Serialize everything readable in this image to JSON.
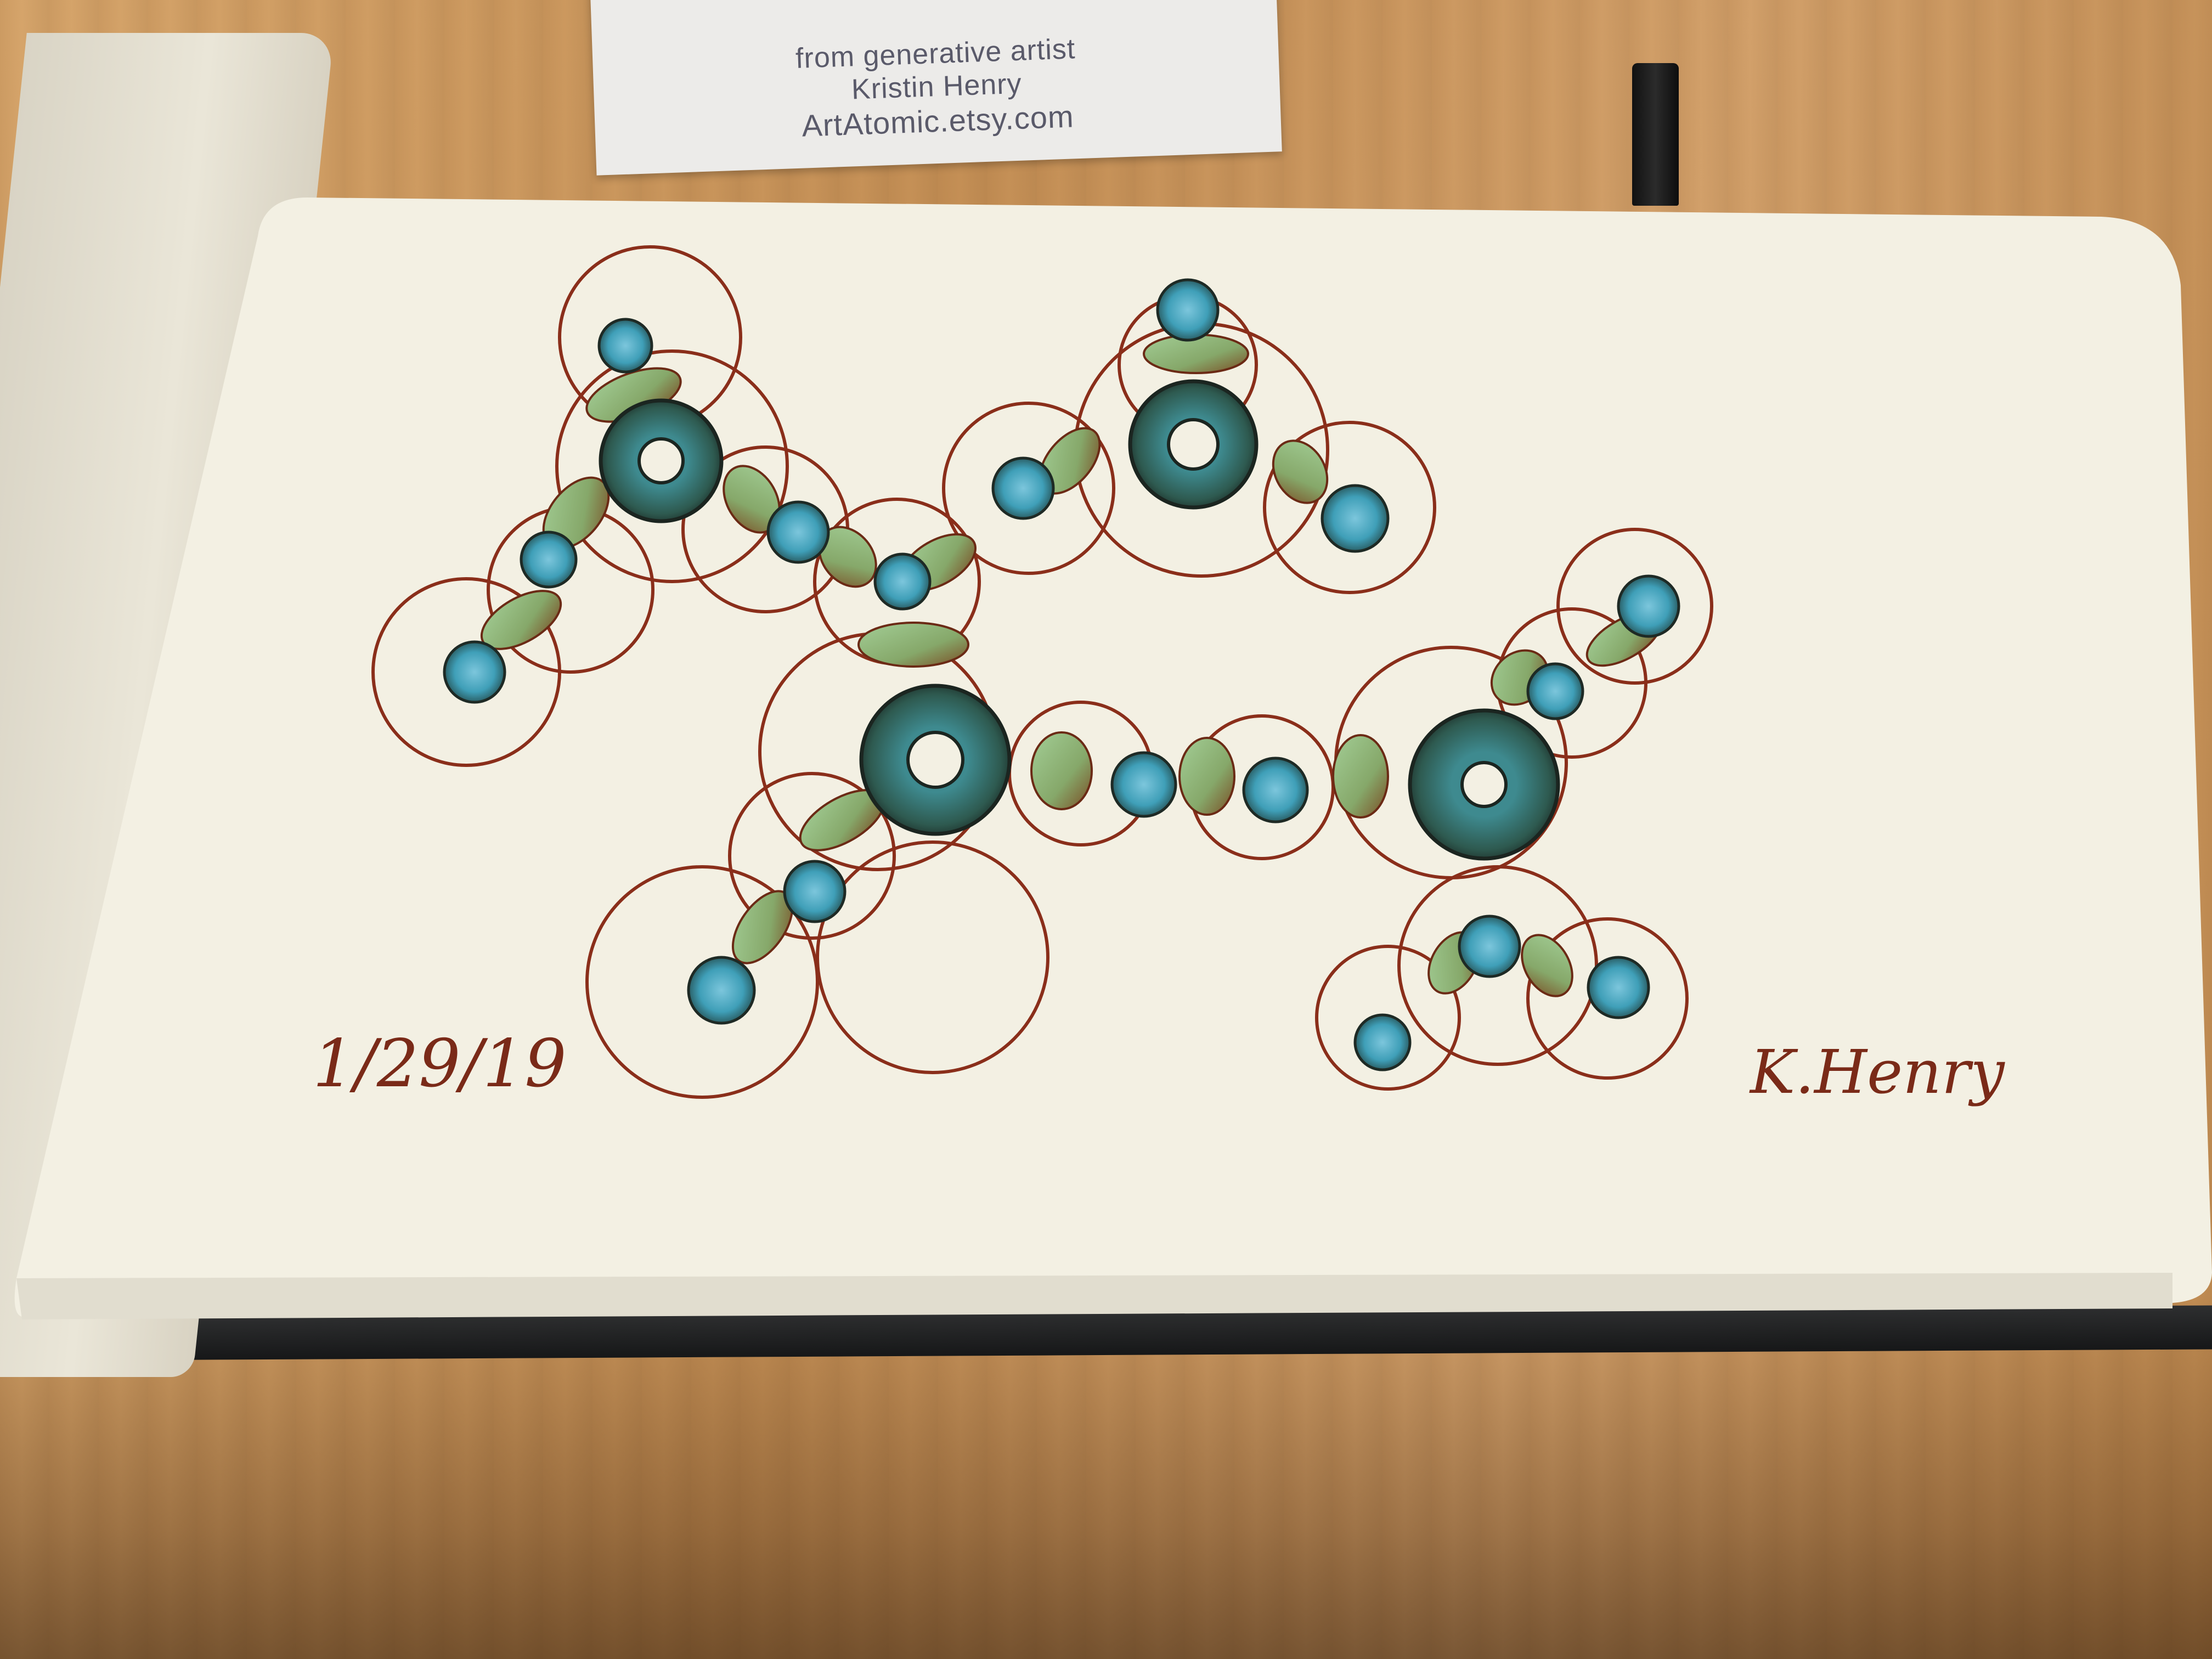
{
  "card": {
    "line1": "from generative artist",
    "line2": "Kristin Henry",
    "line3": "ArtAtomic.etsy.com"
  },
  "sketch": {
    "date": "1/29/19",
    "signature": "K.Henry"
  },
  "colors": {
    "outline": "#8a2e1a",
    "teal": "#3f9fb8",
    "dark_teal": "#2c4f4a",
    "leaf_green": "#9ac48d",
    "paper": "#f3f0e3",
    "table": "#c9955e"
  },
  "icons": [
    "marker-icon"
  ]
}
